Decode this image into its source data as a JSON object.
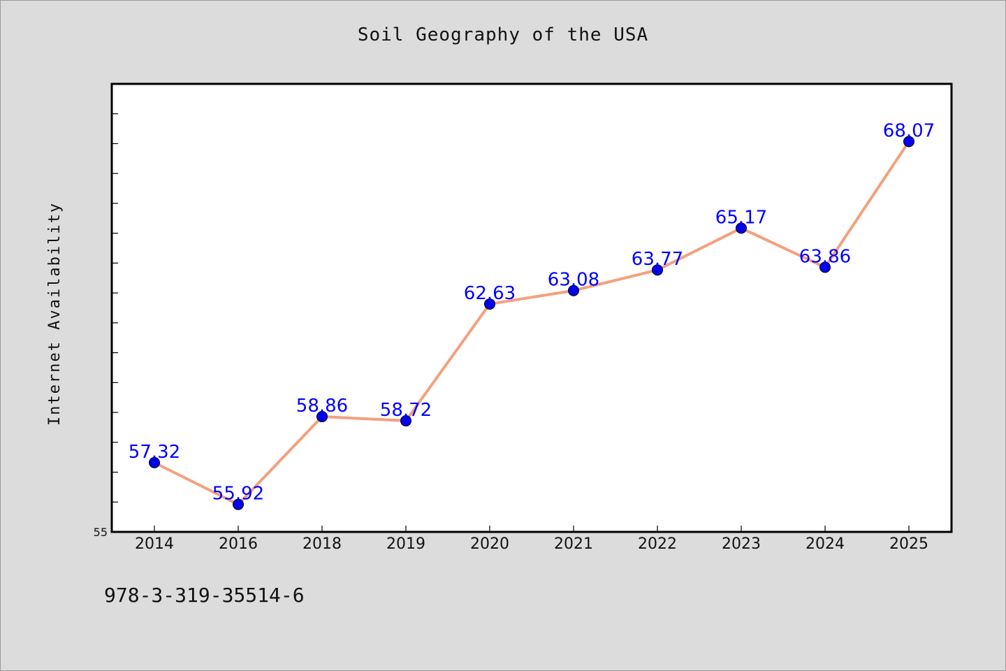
{
  "chart_data": {
    "type": "line",
    "title": "Soil Geography of the USA",
    "xlabel": "",
    "ylabel": "Internet Availability",
    "categories": [
      "2014",
      "2016",
      "2018",
      "2019",
      "2020",
      "2021",
      "2022",
      "2023",
      "2024",
      "2025"
    ],
    "series": [
      {
        "values": [
          57.32,
          55.92,
          58.86,
          58.72,
          62.63,
          63.08,
          63.77,
          65.17,
          63.86,
          68.07
        ]
      }
    ],
    "data_labels": [
      "57.32",
      "55.92",
      "58.86",
      "58.72",
      "62.63",
      "63.08",
      "63.77",
      "65.17",
      "63.86",
      "68.07"
    ],
    "ylim": [
      55,
      70
    ],
    "y_tick_step": 1,
    "y_min_label": "55",
    "grid": false,
    "legend": "none",
    "colors": {
      "line": "#f4a07e",
      "marker": "#0000ee",
      "marker_edge": "#000000",
      "label": "#0000ff",
      "background": "#dcdcdc",
      "plot_background": "#ffffff"
    }
  },
  "footer": {
    "isbn": "978-3-319-35514-6"
  }
}
